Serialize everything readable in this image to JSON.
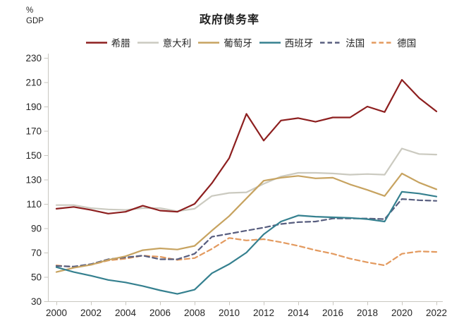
{
  "header": {
    "unit_line1": "%",
    "unit_line2": "GDP",
    "title": "政府债务率"
  },
  "chart_data": {
    "type": "line",
    "title": "政府债务率",
    "unit_label": "% GDP",
    "grid": false,
    "legend_position": "top",
    "ylim": [
      30,
      230
    ],
    "y_ticks": [
      230,
      210,
      190,
      170,
      150,
      130,
      110,
      90,
      70,
      50,
      30
    ],
    "x": [
      2000,
      2001,
      2002,
      2003,
      2004,
      2005,
      2006,
      2007,
      2008,
      2009,
      2010,
      2011,
      2012,
      2013,
      2014,
      2015,
      2016,
      2017,
      2018,
      2019,
      2020,
      2021,
      2022
    ],
    "x_tick_labels": [
      "2000",
      "2002",
      "2004",
      "2006",
      "2008",
      "2010",
      "2012",
      "2014",
      "2016",
      "2018",
      "2020",
      "2022"
    ],
    "series": [
      {
        "id": "greece",
        "name": "希腊",
        "color": "#8d1f1f",
        "style": "solid",
        "values": [
          106,
          107.5,
          105,
          102,
          103.5,
          108.5,
          104.5,
          103.5,
          110,
          127,
          147.5,
          184,
          162,
          178.5,
          180.5,
          177.5,
          181,
          181,
          190,
          185.5,
          212,
          197,
          186
        ]
      },
      {
        "id": "italy",
        "name": "意大利",
        "color": "#cbcac0",
        "style": "solid",
        "values": [
          109,
          109,
          106.5,
          105.5,
          105,
          106.5,
          106.5,
          104,
          106,
          116.5,
          119,
          119.5,
          126.5,
          132.5,
          135.5,
          135.5,
          135,
          134,
          134.5,
          134,
          155.5,
          151,
          150.5
        ]
      },
      {
        "id": "portugal",
        "name": "葡萄牙",
        "color": "#c7a360",
        "style": "solid",
        "values": [
          54,
          57.5,
          60,
          64,
          67,
          72,
          73.5,
          72.5,
          75.5,
          88,
          100,
          114.5,
          129,
          131.5,
          133,
          131,
          131.5,
          126,
          121.5,
          116.5,
          135,
          127.5,
          122
        ]
      },
      {
        "id": "spain",
        "name": "西班牙",
        "color": "#35808f",
        "style": "solid",
        "values": [
          58,
          54,
          51,
          47.5,
          45.5,
          42.5,
          39,
          36,
          39.5,
          53,
          60.5,
          70,
          85,
          95.5,
          100.5,
          99.5,
          99,
          98.5,
          97.5,
          95.5,
          120,
          118.5,
          116
        ]
      },
      {
        "id": "france",
        "name": "法国",
        "color": "#585e7f",
        "style": "dashed",
        "values": [
          59,
          58.5,
          60.5,
          64.5,
          66,
          67.5,
          64.5,
          64.5,
          69,
          83,
          85.5,
          88,
          90.5,
          93.5,
          95,
          95.5,
          98,
          98,
          98,
          97.5,
          114,
          113,
          112.5
        ]
      },
      {
        "id": "germany",
        "name": "德国",
        "color": "#e39a5f",
        "style": "dashed",
        "values": [
          59.5,
          58,
          60,
          63.5,
          65,
          67.5,
          66.5,
          64,
          65.5,
          73,
          82,
          80,
          81,
          78.5,
          75.5,
          72,
          69,
          65,
          62,
          59.5,
          69,
          71,
          70.5
        ]
      }
    ]
  }
}
